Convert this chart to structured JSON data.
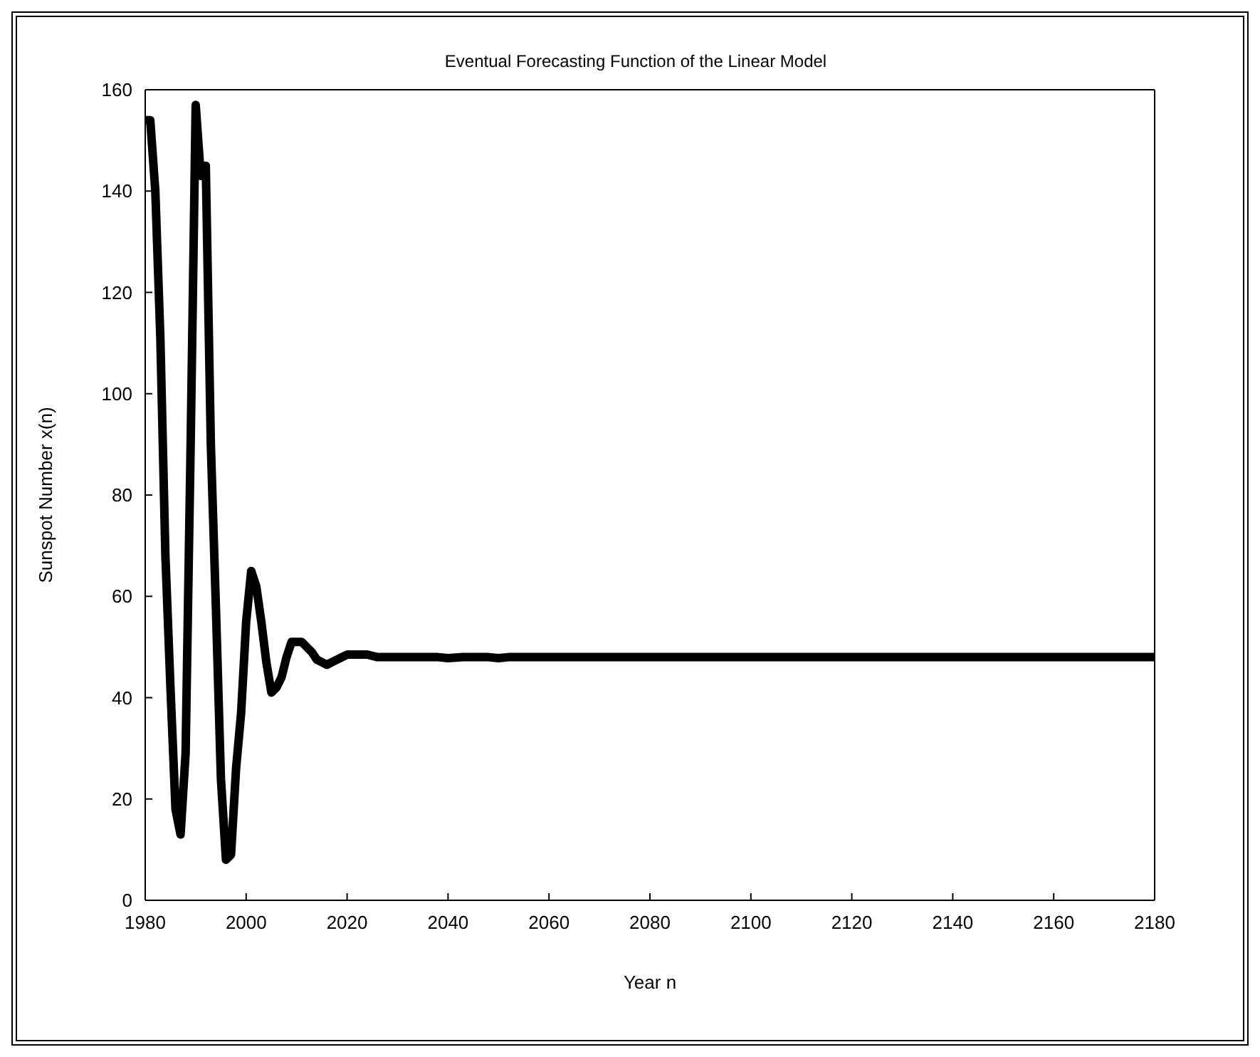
{
  "chart_data": {
    "type": "line",
    "title": "Eventual Forecasting Function of the  Linear Model",
    "xlabel": "Year n",
    "ylabel": "Sunspot Number x(n)",
    "x": [
      1980,
      1981,
      1982,
      1983,
      1984,
      1985,
      1986,
      1987,
      1988,
      1989,
      1990,
      1991,
      1992,
      1993,
      1994,
      1995,
      1996,
      1997,
      1998,
      1999,
      2000,
      2001,
      2002,
      2003,
      2004,
      2005,
      2006,
      2007,
      2008,
      2009,
      2010,
      2011,
      2012,
      2013,
      2014,
      2015,
      2016,
      2017,
      2018,
      2019,
      2020,
      2021,
      2022,
      2024,
      2026,
      2028,
      2030,
      2032,
      2035,
      2038,
      2040,
      2043,
      2045,
      2048,
      2050,
      2052,
      2060,
      2100,
      2180
    ],
    "series": [
      {
        "color": "#000000",
        "values": [
          154,
          154,
          140,
          111,
          68,
          42,
          18,
          13,
          29,
          90,
          157,
          143,
          145,
          90,
          58,
          24,
          8,
          9,
          26,
          37,
          55,
          65,
          62,
          55,
          47,
          41,
          42,
          44,
          48,
          51,
          51,
          51,
          50,
          49,
          47.5,
          47,
          46.5,
          47,
          47.5,
          48,
          48.5,
          48.5,
          48.5,
          48.5,
          48,
          48,
          48,
          48,
          48,
          48,
          47.8,
          48,
          48,
          48,
          47.8,
          48,
          48,
          48,
          48
        ]
      }
    ],
    "xlim": [
      1980,
      2180
    ],
    "ylim": [
      0,
      160
    ],
    "xticks": [
      1980,
      2000,
      2020,
      2040,
      2060,
      2080,
      2100,
      2120,
      2140,
      2160,
      2180
    ],
    "yticks": [
      0,
      20,
      40,
      60,
      80,
      100,
      120,
      140,
      160
    ],
    "grid": false,
    "legend": false,
    "marker": "none",
    "line_style": "solid"
  }
}
